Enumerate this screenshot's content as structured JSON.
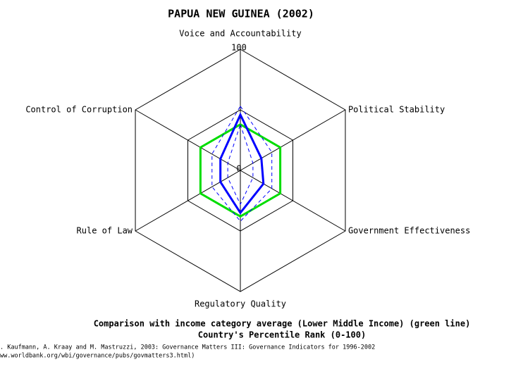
{
  "chart_data": {
    "type": "radar",
    "title": "PAPUA NEW GUINEA (2002)",
    "categories": [
      "Voice and Accountability",
      "Political Stability",
      "Government Effectiveness",
      "Regulatory Quality",
      "Rule of Law",
      "Control of Corruption"
    ],
    "rlim": [
      0,
      100
    ],
    "rticks": [
      0,
      100
    ],
    "rings": [
      50,
      100
    ],
    "series": [
      {
        "color": "#00dd00",
        "style": "solid",
        "width": 3,
        "values": [
          38,
          38,
          38,
          38,
          38,
          38
        ]
      },
      {
        "color": "#0000ff",
        "style": "dashed",
        "width": 1,
        "values": [
          53,
          30,
          30,
          42,
          27,
          27
        ]
      },
      {
        "color": "#0000ff",
        "style": "dashed",
        "width": 1,
        "values": [
          38,
          12,
          12,
          28,
          12,
          12
        ]
      },
      {
        "color": "#0000ff",
        "style": "solid",
        "width": 3,
        "values": [
          46,
          20,
          22,
          35,
          19,
          19
        ]
      }
    ],
    "subtitle": [
      "Comparison with income category average (Lower Middle Income) (green line)",
      "Country's Percentile Rank (0-100)"
    ],
    "source": [
      ". Kaufmann, A. Kraay and M. Mastruzzi, 2003: Governance Matters III: Governance Indicators for 1996-2002",
      "ww.worldbank.org/wbi/governance/pubs/govmatters3.html)"
    ]
  }
}
